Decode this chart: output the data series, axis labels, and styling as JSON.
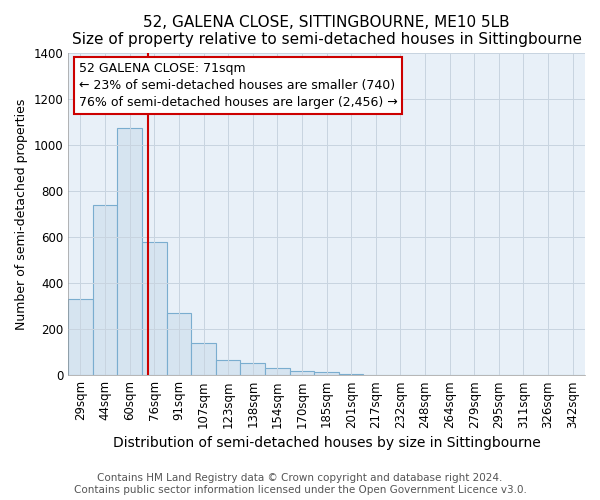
{
  "title": "52, GALENA CLOSE, SITTINGBOURNE, ME10 5LB",
  "subtitle": "Size of property relative to semi-detached houses in Sittingbourne",
  "xlabel": "Distribution of semi-detached houses by size in Sittingbourne",
  "ylabel": "Number of semi-detached properties",
  "footnote": "Contains HM Land Registry data © Crown copyright and database right 2024.\nContains public sector information licensed under the Open Government Licence v3.0.",
  "categories": [
    "29sqm",
    "44sqm",
    "60sqm",
    "76sqm",
    "91sqm",
    "107sqm",
    "123sqm",
    "138sqm",
    "154sqm",
    "170sqm",
    "185sqm",
    "201sqm",
    "217sqm",
    "232sqm",
    "248sqm",
    "264sqm",
    "279sqm",
    "295sqm",
    "311sqm",
    "326sqm",
    "342sqm"
  ],
  "values": [
    330,
    740,
    1075,
    580,
    270,
    140,
    65,
    55,
    30,
    20,
    15,
    5,
    0,
    0,
    0,
    0,
    0,
    0,
    0,
    0,
    0
  ],
  "bar_facecolor": "#d6e4f0",
  "bar_edgecolor": "#7aadcf",
  "vline_x": 2.73,
  "vline_color": "#cc0000",
  "annotation_text": "52 GALENA CLOSE: 71sqm\n← 23% of semi-detached houses are smaller (740)\n76% of semi-detached houses are larger (2,456) →",
  "annotation_box_edgecolor": "#cc0000",
  "annotation_box_facecolor": "#ffffff",
  "ylim": [
    0,
    1400
  ],
  "yticks": [
    0,
    200,
    400,
    600,
    800,
    1000,
    1200,
    1400
  ],
  "title_fontsize": 11,
  "subtitle_fontsize": 10,
  "xlabel_fontsize": 10,
  "ylabel_fontsize": 9,
  "tick_fontsize": 8.5,
  "annotation_fontsize": 9,
  "footnote_fontsize": 7.5,
  "background_color": "#ffffff",
  "plot_bg_color": "#e8f0f8",
  "grid_color": "#c8d4e0"
}
